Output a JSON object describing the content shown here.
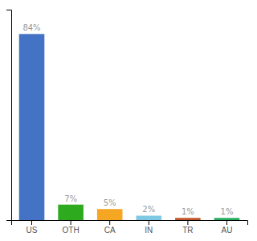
{
  "chart_data": {
    "type": "bar",
    "categories": [
      "US",
      "OTH",
      "CA",
      "IN",
      "TR",
      "AU"
    ],
    "values": [
      84,
      7,
      5,
      2,
      1,
      1
    ],
    "value_labels": [
      "84%",
      "7%",
      "5%",
      "2%",
      "1%",
      "1%"
    ],
    "colors": [
      "#4472C4",
      "#2EAA1E",
      "#F5A623",
      "#7EC8E3",
      "#C0562B",
      "#27AE60"
    ],
    "ylim": [
      0,
      95
    ],
    "data_labels": true,
    "tick_labels": "x",
    "grid": false
  }
}
